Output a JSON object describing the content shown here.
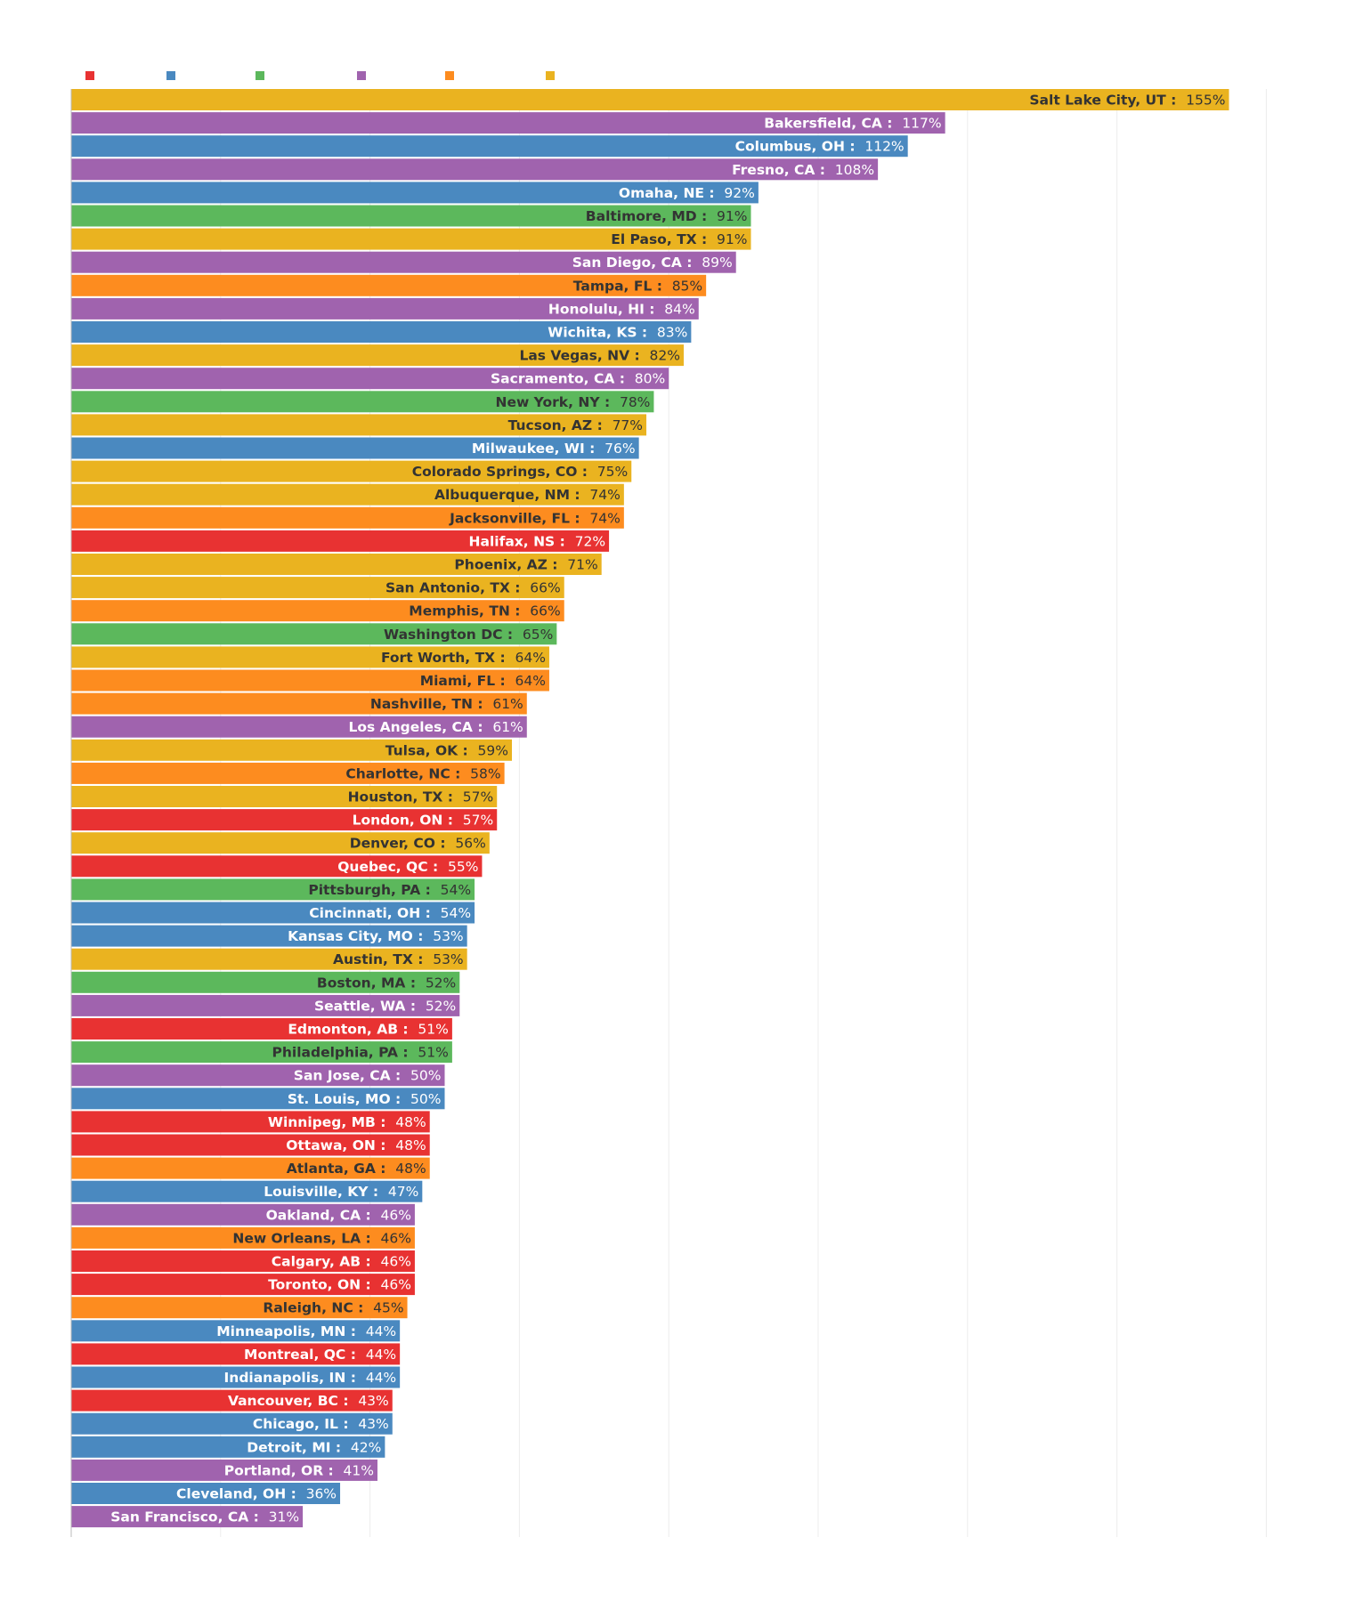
{
  "chart_data": {
    "type": "bar",
    "orientation": "horizontal",
    "title": "",
    "xlabel": "",
    "ylabel": "",
    "xlim": [
      0,
      160
    ],
    "grid": true,
    "legend_position": "top-left",
    "legend": [
      {
        "color": "#e83232",
        "label": ""
      },
      {
        "color": "#4a89c0",
        "label": ""
      },
      {
        "color": "#5cb85c",
        "label": ""
      },
      {
        "color": "#a063ae",
        "label": ""
      },
      {
        "color": "#fd8c1f",
        "label": ""
      },
      {
        "color": "#eab320",
        "label": ""
      }
    ],
    "bars": [
      {
        "city": "Salt Lake City, UT",
        "value": 155,
        "label": "155%",
        "color": "#eab320",
        "text_color": "#333333"
      },
      {
        "city": "Bakersfield, CA",
        "value": 117,
        "label": "117%",
        "color": "#a063ae",
        "text_color": "#ffffff"
      },
      {
        "city": "Columbus, OH",
        "value": 112,
        "label": "112%",
        "color": "#4a89c0",
        "text_color": "#ffffff"
      },
      {
        "city": "Fresno, CA",
        "value": 108,
        "label": "108%",
        "color": "#a063ae",
        "text_color": "#ffffff"
      },
      {
        "city": "Omaha, NE",
        "value": 92,
        "label": "92%",
        "color": "#4a89c0",
        "text_color": "#ffffff"
      },
      {
        "city": "Baltimore, MD",
        "value": 91,
        "label": "91%",
        "color": "#5cb85c",
        "text_color": "#333333"
      },
      {
        "city": "El Paso, TX",
        "value": 91,
        "label": "91%",
        "color": "#eab320",
        "text_color": "#333333"
      },
      {
        "city": "San Diego, CA",
        "value": 89,
        "label": "89%",
        "color": "#a063ae",
        "text_color": "#ffffff"
      },
      {
        "city": "Tampa, FL",
        "value": 85,
        "label": "85%",
        "color": "#fd8c1f",
        "text_color": "#333333"
      },
      {
        "city": "Honolulu, HI",
        "value": 84,
        "label": "84%",
        "color": "#a063ae",
        "text_color": "#ffffff"
      },
      {
        "city": "Wichita, KS",
        "value": 83,
        "label": "83%",
        "color": "#4a89c0",
        "text_color": "#ffffff"
      },
      {
        "city": "Las Vegas, NV",
        "value": 82,
        "label": "82%",
        "color": "#eab320",
        "text_color": "#333333"
      },
      {
        "city": "Sacramento, CA",
        "value": 80,
        "label": "80%",
        "color": "#a063ae",
        "text_color": "#ffffff"
      },
      {
        "city": "New York, NY",
        "value": 78,
        "label": "78%",
        "color": "#5cb85c",
        "text_color": "#333333"
      },
      {
        "city": "Tucson, AZ",
        "value": 77,
        "label": "77%",
        "color": "#eab320",
        "text_color": "#333333"
      },
      {
        "city": "Milwaukee, WI",
        "value": 76,
        "label": "76%",
        "color": "#4a89c0",
        "text_color": "#ffffff"
      },
      {
        "city": "Colorado Springs, CO",
        "value": 75,
        "label": "75%",
        "color": "#eab320",
        "text_color": "#333333"
      },
      {
        "city": "Albuquerque, NM",
        "value": 74,
        "label": "74%",
        "color": "#eab320",
        "text_color": "#333333"
      },
      {
        "city": "Jacksonville, FL",
        "value": 74,
        "label": "74%",
        "color": "#fd8c1f",
        "text_color": "#333333"
      },
      {
        "city": "Halifax, NS",
        "value": 72,
        "label": "72%",
        "color": "#e83232",
        "text_color": "#ffffff"
      },
      {
        "city": "Phoenix, AZ",
        "value": 71,
        "label": "71%",
        "color": "#eab320",
        "text_color": "#333333"
      },
      {
        "city": "San Antonio, TX",
        "value": 66,
        "label": "66%",
        "color": "#eab320",
        "text_color": "#333333"
      },
      {
        "city": "Memphis, TN",
        "value": 66,
        "label": "66%",
        "color": "#fd8c1f",
        "text_color": "#333333"
      },
      {
        "city": "Washington DC",
        "value": 65,
        "label": "65%",
        "color": "#5cb85c",
        "text_color": "#333333"
      },
      {
        "city": "Fort Worth, TX",
        "value": 64,
        "label": "64%",
        "color": "#eab320",
        "text_color": "#333333"
      },
      {
        "city": "Miami, FL",
        "value": 64,
        "label": "64%",
        "color": "#fd8c1f",
        "text_color": "#333333"
      },
      {
        "city": "Nashville, TN",
        "value": 61,
        "label": "61%",
        "color": "#fd8c1f",
        "text_color": "#333333"
      },
      {
        "city": "Los Angeles, CA",
        "value": 61,
        "label": "61%",
        "color": "#a063ae",
        "text_color": "#ffffff"
      },
      {
        "city": "Tulsa, OK",
        "value": 59,
        "label": "59%",
        "color": "#eab320",
        "text_color": "#333333"
      },
      {
        "city": "Charlotte, NC",
        "value": 58,
        "label": "58%",
        "color": "#fd8c1f",
        "text_color": "#333333"
      },
      {
        "city": "Houston, TX",
        "value": 57,
        "label": "57%",
        "color": "#eab320",
        "text_color": "#333333"
      },
      {
        "city": "London, ON",
        "value": 57,
        "label": "57%",
        "color": "#e83232",
        "text_color": "#ffffff"
      },
      {
        "city": "Denver, CO",
        "value": 56,
        "label": "56%",
        "color": "#eab320",
        "text_color": "#333333"
      },
      {
        "city": "Quebec, QC",
        "value": 55,
        "label": "55%",
        "color": "#e83232",
        "text_color": "#ffffff"
      },
      {
        "city": "Pittsburgh, PA",
        "value": 54,
        "label": "54%",
        "color": "#5cb85c",
        "text_color": "#333333"
      },
      {
        "city": "Cincinnati, OH",
        "value": 54,
        "label": "54%",
        "color": "#4a89c0",
        "text_color": "#ffffff"
      },
      {
        "city": "Kansas City, MO",
        "value": 53,
        "label": "53%",
        "color": "#4a89c0",
        "text_color": "#ffffff"
      },
      {
        "city": "Austin, TX",
        "value": 53,
        "label": "53%",
        "color": "#eab320",
        "text_color": "#333333"
      },
      {
        "city": "Boston, MA",
        "value": 52,
        "label": "52%",
        "color": "#5cb85c",
        "text_color": "#333333"
      },
      {
        "city": "Seattle, WA",
        "value": 52,
        "label": "52%",
        "color": "#a063ae",
        "text_color": "#ffffff"
      },
      {
        "city": "Edmonton, AB",
        "value": 51,
        "label": "51%",
        "color": "#e83232",
        "text_color": "#ffffff"
      },
      {
        "city": "Philadelphia, PA",
        "value": 51,
        "label": "51%",
        "color": "#5cb85c",
        "text_color": "#333333"
      },
      {
        "city": "San Jose, CA",
        "value": 50,
        "label": "50%",
        "color": "#a063ae",
        "text_color": "#ffffff"
      },
      {
        "city": "St. Louis, MO",
        "value": 50,
        "label": "50%",
        "color": "#4a89c0",
        "text_color": "#ffffff"
      },
      {
        "city": "Winnipeg, MB",
        "value": 48,
        "label": "48%",
        "color": "#e83232",
        "text_color": "#ffffff"
      },
      {
        "city": "Ottawa, ON",
        "value": 48,
        "label": "48%",
        "color": "#e83232",
        "text_color": "#ffffff"
      },
      {
        "city": "Atlanta, GA",
        "value": 48,
        "label": "48%",
        "color": "#fd8c1f",
        "text_color": "#333333"
      },
      {
        "city": "Louisville, KY",
        "value": 47,
        "label": "47%",
        "color": "#4a89c0",
        "text_color": "#ffffff"
      },
      {
        "city": "Oakland, CA",
        "value": 46,
        "label": "46%",
        "color": "#a063ae",
        "text_color": "#ffffff"
      },
      {
        "city": "New Orleans, LA",
        "value": 46,
        "label": "46%",
        "color": "#fd8c1f",
        "text_color": "#333333"
      },
      {
        "city": "Calgary, AB",
        "value": 46,
        "label": "46%",
        "color": "#e83232",
        "text_color": "#ffffff"
      },
      {
        "city": "Toronto, ON",
        "value": 46,
        "label": "46%",
        "color": "#e83232",
        "text_color": "#ffffff"
      },
      {
        "city": "Raleigh, NC",
        "value": 45,
        "label": "45%",
        "color": "#fd8c1f",
        "text_color": "#333333"
      },
      {
        "city": "Minneapolis, MN",
        "value": 44,
        "label": "44%",
        "color": "#4a89c0",
        "text_color": "#ffffff"
      },
      {
        "city": "Montreal, QC",
        "value": 44,
        "label": "44%",
        "color": "#e83232",
        "text_color": "#ffffff"
      },
      {
        "city": "Indianapolis, IN",
        "value": 44,
        "label": "44%",
        "color": "#4a89c0",
        "text_color": "#ffffff"
      },
      {
        "city": "Vancouver, BC",
        "value": 43,
        "label": "43%",
        "color": "#e83232",
        "text_color": "#ffffff"
      },
      {
        "city": "Chicago, IL",
        "value": 43,
        "label": "43%",
        "color": "#4a89c0",
        "text_color": "#ffffff"
      },
      {
        "city": "Detroit, MI",
        "value": 42,
        "label": "42%",
        "color": "#4a89c0",
        "text_color": "#ffffff"
      },
      {
        "city": "Portland, OR",
        "value": 41,
        "label": "41%",
        "color": "#a063ae",
        "text_color": "#ffffff"
      },
      {
        "city": "Cleveland, OH",
        "value": 36,
        "label": "36%",
        "color": "#4a89c0",
        "text_color": "#ffffff"
      },
      {
        "city": "San Francisco, CA",
        "value": 31,
        "label": "31%",
        "color": "#a063ae",
        "text_color": "#ffffff"
      }
    ]
  }
}
